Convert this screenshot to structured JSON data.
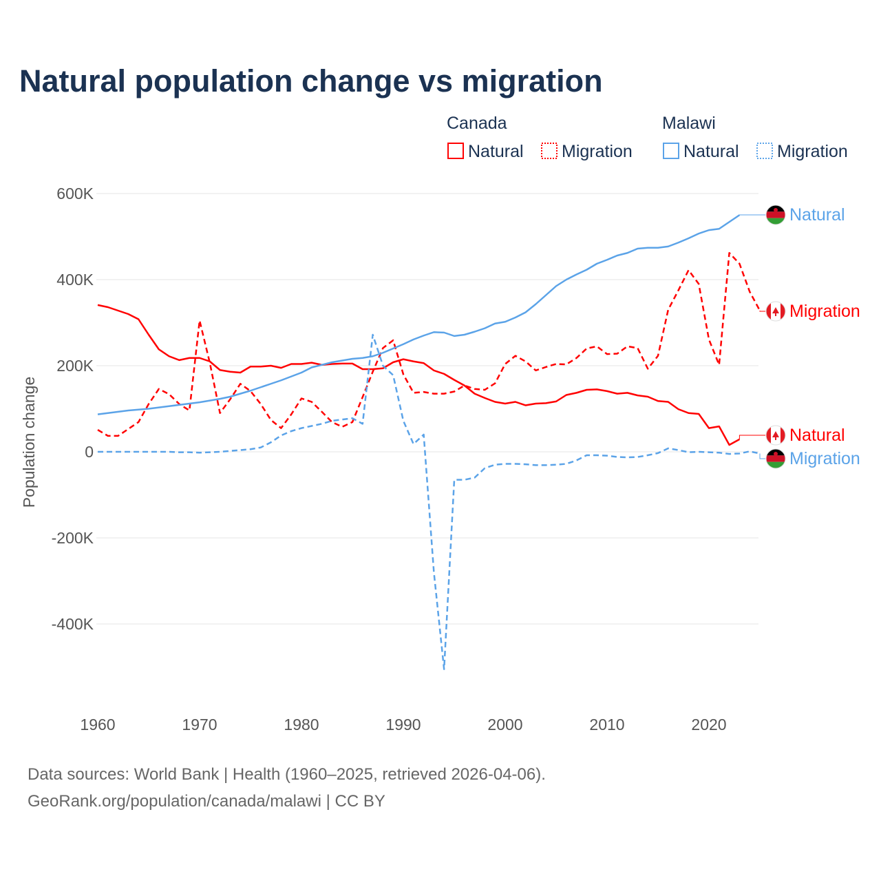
{
  "colors": {
    "canada": "#ff0000",
    "malawi": "#5ba3e8",
    "title": "#1b3252",
    "text": "#555555",
    "grid": "#e6e6e6"
  },
  "chart_data": {
    "type": "line",
    "title": "Natural population change vs migration",
    "ylabel": "Population change",
    "xlabel": "",
    "ylim": [
      -500000,
      600000
    ],
    "xlim": [
      1960,
      2025
    ],
    "grid": true,
    "legend_placement": "top-right",
    "y_ticks": [
      {
        "v": 600,
        "label": "600K"
      },
      {
        "v": 400,
        "label": "400K"
      },
      {
        "v": 200,
        "label": "200K"
      },
      {
        "v": 0,
        "label": "0"
      },
      {
        "v": -200,
        "label": "-200K"
      },
      {
        "v": -400,
        "label": "-400K"
      }
    ],
    "x_ticks": [
      {
        "v": 1960,
        "label": "1960"
      },
      {
        "v": 1970,
        "label": "1970"
      },
      {
        "v": 1980,
        "label": "1980"
      },
      {
        "v": 1990,
        "label": "1990"
      },
      {
        "v": 2000,
        "label": "2000"
      },
      {
        "v": 2010,
        "label": "2010"
      },
      {
        "v": 2020,
        "label": "2020"
      }
    ],
    "units": "thousands",
    "start_year": 1960,
    "legend": {
      "groups": [
        {
          "name": "Canada",
          "entries": [
            "Natural",
            "Migration"
          ]
        },
        {
          "name": "Malawi",
          "entries": [
            "Natural",
            "Migration"
          ]
        }
      ]
    },
    "series": [
      {
        "name": "Canada Natural",
        "country": "canada",
        "dashed": false,
        "end_label": "Natural",
        "values": [
          341,
          336,
          328,
          320,
          308,
          272,
          238,
          222,
          213,
          218,
          218,
          210,
          190,
          186,
          184,
          198,
          198,
          200,
          195,
          204,
          204,
          207,
          202,
          204,
          205,
          205,
          192,
          192,
          194,
          208,
          215,
          210,
          206,
          189,
          181,
          167,
          154,
          135,
          125,
          116,
          112,
          116,
          108,
          112,
          113,
          117,
          132,
          137,
          144,
          145,
          141,
          135,
          137,
          131,
          128,
          118,
          116,
          99,
          90,
          88,
          55,
          59,
          16,
          29
        ]
      },
      {
        "name": "Canada Migration",
        "country": "canada",
        "dashed": true,
        "end_label": "Migration",
        "values": [
          51,
          37,
          37,
          53,
          69,
          111,
          146,
          134,
          111,
          96,
          305,
          207,
          90,
          122,
          158,
          141,
          111,
          74,
          55,
          87,
          124,
          116,
          93,
          69,
          58,
          69,
          127,
          186,
          241,
          259,
          180,
          137,
          139,
          135,
          135,
          140,
          154,
          146,
          144,
          159,
          204,
          223,
          210,
          189,
          197,
          204,
          203,
          218,
          240,
          245,
          227,
          228,
          245,
          241,
          193,
          223,
          330,
          375,
          422,
          390,
          261,
          202,
          462,
          437,
          372,
          328
        ]
      },
      {
        "name": "Malawi Natural",
        "country": "malawi",
        "dashed": false,
        "end_label": "Natural",
        "values": [
          87,
          90,
          93,
          96,
          98,
          100,
          103,
          106,
          109,
          112,
          115,
          119,
          123,
          128,
          135,
          142,
          150,
          158,
          166,
          175,
          184,
          196,
          202,
          208,
          212,
          216,
          218,
          222,
          230,
          240,
          250,
          261,
          270,
          278,
          277,
          269,
          272,
          279,
          287,
          298,
          302,
          312,
          324,
          343,
          364,
          385,
          400,
          412,
          423,
          437,
          446,
          456,
          462,
          472,
          474,
          474,
          477,
          486,
          496,
          507,
          515,
          518,
          534,
          550
        ]
      },
      {
        "name": "Malawi Migration",
        "country": "malawi",
        "dashed": true,
        "end_label": "Migration",
        "values": [
          0,
          0,
          0,
          0,
          0,
          0,
          0,
          0,
          -1,
          -1,
          -2,
          -1,
          0,
          2,
          4,
          6,
          10,
          22,
          38,
          48,
          55,
          60,
          65,
          72,
          75,
          78,
          65,
          272,
          200,
          178,
          72,
          18,
          40,
          -280,
          -505,
          -65,
          -65,
          -60,
          -38,
          -30,
          -28,
          -28,
          -29,
          -31,
          -31,
          -30,
          -28,
          -20,
          -8,
          -8,
          -9,
          -12,
          -13,
          -12,
          -8,
          -3,
          8,
          4,
          -1,
          0,
          -1,
          -2,
          -5,
          -4,
          1,
          -4
        ]
      }
    ]
  },
  "footer": {
    "line1": "Data sources: World Bank | Health (1960–2025, retrieved 2026-04-06).",
    "line2": "GeoRank.org/population/canada/malawi | CC BY"
  }
}
